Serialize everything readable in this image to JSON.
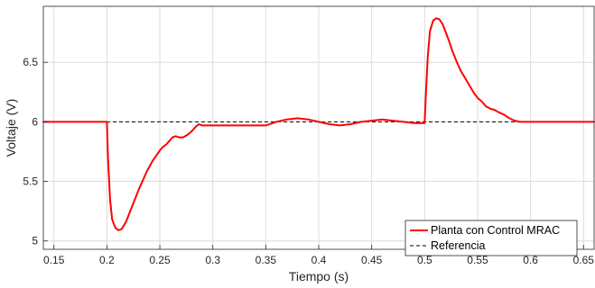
{
  "chart_data": {
    "type": "line",
    "xlabel": "Tiempo (s)",
    "ylabel": "Voltaje (V)",
    "xlim": [
      0.14,
      0.66
    ],
    "ylim": [
      4.93,
      6.97
    ],
    "x_ticks": [
      0.15,
      0.2,
      0.25,
      0.3,
      0.35,
      0.4,
      0.45,
      0.5,
      0.55,
      0.6,
      0.65
    ],
    "x_tick_labels": [
      "0.15",
      "0.2",
      "0.25",
      "0.3",
      "0.35",
      "0.4",
      "0.45",
      "0.5",
      "0.55",
      "0.6",
      "0.65"
    ],
    "y_ticks": [
      5,
      5.5,
      6,
      6.5
    ],
    "y_tick_labels": [
      "5",
      "5.5",
      "6",
      "6.5"
    ],
    "grid": true,
    "legend_position": "bottom-right",
    "colors": {
      "planta": "#ff0000",
      "referencia": "#000000",
      "grid": "#dcdcdc"
    },
    "series": [
      {
        "name": "Planta con Control MRAC",
        "style": "solid",
        "x": [
          0.14,
          0.2,
          0.201,
          0.203,
          0.205,
          0.208,
          0.211,
          0.214,
          0.218,
          0.222,
          0.226,
          0.23,
          0.234,
          0.238,
          0.24,
          0.243,
          0.247,
          0.25,
          0.253,
          0.256,
          0.259,
          0.262,
          0.265,
          0.268,
          0.272,
          0.276,
          0.28,
          0.284,
          0.287,
          0.29,
          0.293,
          0.3,
          0.35,
          0.36,
          0.37,
          0.38,
          0.39,
          0.4,
          0.41,
          0.42,
          0.43,
          0.44,
          0.45,
          0.46,
          0.47,
          0.48,
          0.49,
          0.5,
          0.501,
          0.503,
          0.505,
          0.508,
          0.511,
          0.514,
          0.517,
          0.52,
          0.523,
          0.526,
          0.53,
          0.534,
          0.538,
          0.542,
          0.546,
          0.55,
          0.554,
          0.558,
          0.562,
          0.566,
          0.57,
          0.575,
          0.58,
          0.585,
          0.59,
          0.595,
          0.6,
          0.66
        ],
        "y": [
          6.0,
          6.0,
          5.7,
          5.35,
          5.18,
          5.11,
          5.09,
          5.1,
          5.16,
          5.25,
          5.34,
          5.43,
          5.51,
          5.59,
          5.62,
          5.67,
          5.72,
          5.76,
          5.79,
          5.81,
          5.84,
          5.87,
          5.88,
          5.87,
          5.87,
          5.89,
          5.92,
          5.96,
          5.98,
          5.97,
          5.97,
          5.97,
          5.97,
          6.0,
          6.02,
          6.03,
          6.02,
          6.0,
          5.98,
          5.97,
          5.98,
          6.0,
          6.01,
          6.02,
          6.01,
          6.0,
          5.99,
          5.99,
          6.2,
          6.55,
          6.76,
          6.85,
          6.87,
          6.86,
          6.82,
          6.75,
          6.68,
          6.6,
          6.51,
          6.43,
          6.37,
          6.31,
          6.25,
          6.2,
          6.17,
          6.13,
          6.11,
          6.1,
          6.08,
          6.06,
          6.03,
          6.01,
          6.0,
          6.0,
          6.0,
          6.0
        ]
      },
      {
        "name": "Referencia",
        "style": "dashed",
        "x": [
          0.14,
          0.66
        ],
        "y": [
          6.0,
          6.0
        ]
      }
    ]
  }
}
